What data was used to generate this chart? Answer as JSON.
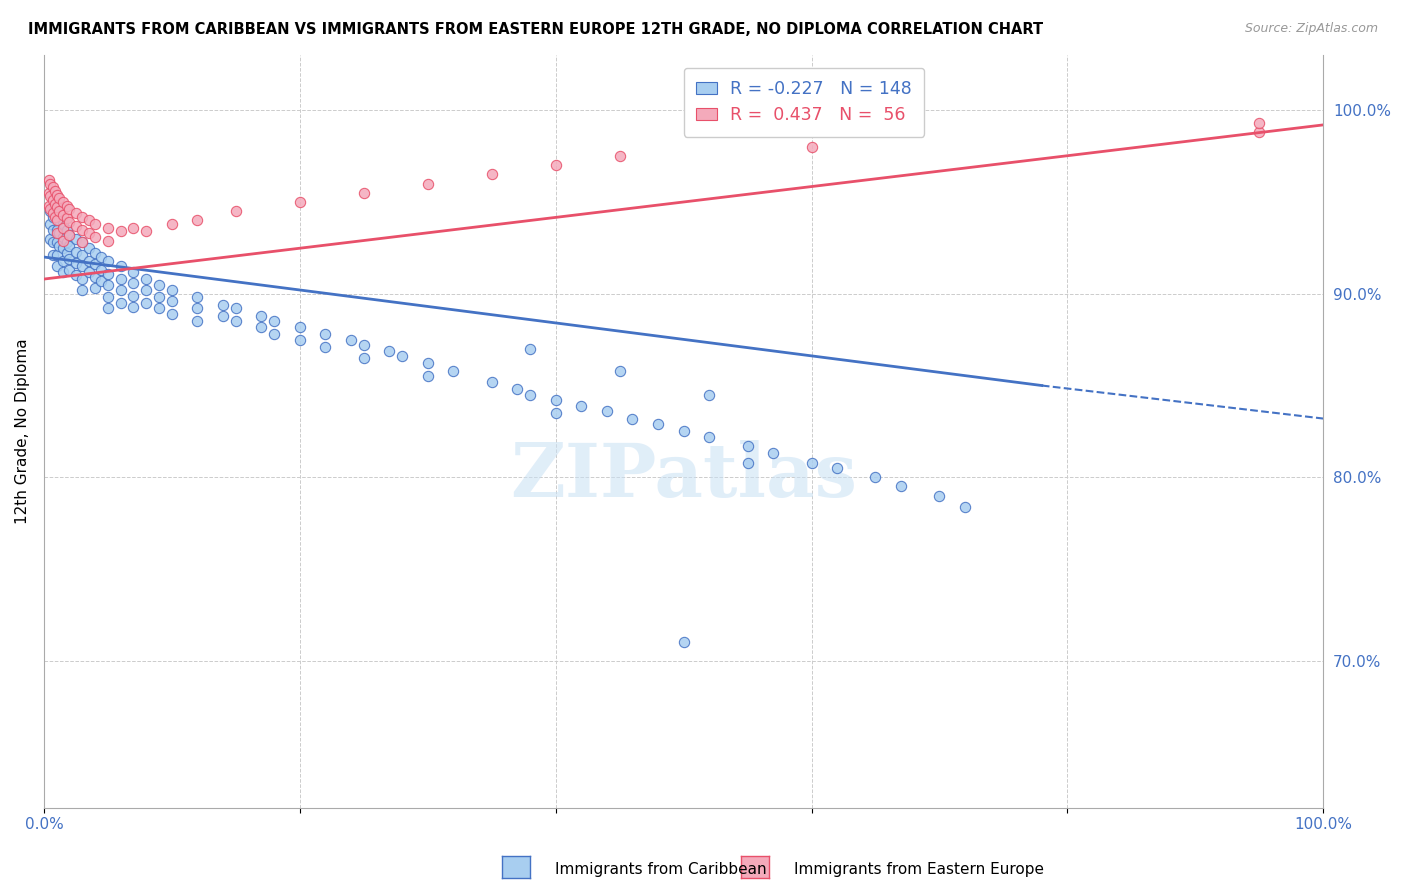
{
  "title": "IMMIGRANTS FROM CARIBBEAN VS IMMIGRANTS FROM EASTERN EUROPE 12TH GRADE, NO DIPLOMA CORRELATION CHART",
  "source": "Source: ZipAtlas.com",
  "ylabel": "12th Grade, No Diploma",
  "xlim": [
    0,
    1.0
  ],
  "ylim": [
    0.62,
    1.03
  ],
  "x_tick_pos": [
    0.0,
    0.2,
    0.4,
    0.6,
    0.8,
    1.0
  ],
  "x_tick_labels": [
    "0.0%",
    "",
    "",
    "",
    "",
    "100.0%"
  ],
  "y_tick_labels_right": [
    "100.0%",
    "90.0%",
    "80.0%",
    "70.0%"
  ],
  "y_tick_positions_right": [
    1.0,
    0.9,
    0.8,
    0.7
  ],
  "legend_blue_label": "Immigrants from Caribbean",
  "legend_pink_label": "Immigrants from Eastern Europe",
  "R_blue": -0.227,
  "N_blue": 148,
  "R_pink": 0.437,
  "N_pink": 56,
  "blue_color": "#A8CEF0",
  "pink_color": "#F4AABB",
  "blue_line_color": "#4472C4",
  "pink_line_color": "#E8506A",
  "watermark": "ZIPatlas",
  "blue_scatter_x": [
    0.005,
    0.005,
    0.005,
    0.007,
    0.007,
    0.007,
    0.007,
    0.01,
    0.01,
    0.01,
    0.01,
    0.01,
    0.01,
    0.012,
    0.012,
    0.012,
    0.015,
    0.015,
    0.015,
    0.015,
    0.015,
    0.018,
    0.018,
    0.018,
    0.02,
    0.02,
    0.02,
    0.02,
    0.025,
    0.025,
    0.025,
    0.025,
    0.03,
    0.03,
    0.03,
    0.03,
    0.03,
    0.035,
    0.035,
    0.035,
    0.04,
    0.04,
    0.04,
    0.04,
    0.045,
    0.045,
    0.045,
    0.05,
    0.05,
    0.05,
    0.05,
    0.05,
    0.06,
    0.06,
    0.06,
    0.06,
    0.07,
    0.07,
    0.07,
    0.07,
    0.08,
    0.08,
    0.08,
    0.09,
    0.09,
    0.09,
    0.1,
    0.1,
    0.1,
    0.12,
    0.12,
    0.12,
    0.14,
    0.14,
    0.15,
    0.15,
    0.17,
    0.17,
    0.18,
    0.18,
    0.2,
    0.2,
    0.22,
    0.22,
    0.24,
    0.25,
    0.25,
    0.27,
    0.28,
    0.3,
    0.3,
    0.32,
    0.35,
    0.37,
    0.38,
    0.4,
    0.4,
    0.42,
    0.44,
    0.46,
    0.48,
    0.5,
    0.52,
    0.55,
    0.55,
    0.57,
    0.6,
    0.62,
    0.65,
    0.67,
    0.7,
    0.72,
    0.38,
    0.45,
    0.52,
    0.5
  ],
  "blue_scatter_y": [
    0.945,
    0.938,
    0.93,
    0.942,
    0.935,
    0.928,
    0.921,
    0.948,
    0.942,
    0.935,
    0.928,
    0.921,
    0.915,
    0.94,
    0.933,
    0.926,
    0.938,
    0.931,
    0.925,
    0.918,
    0.912,
    0.935,
    0.928,
    0.922,
    0.932,
    0.926,
    0.919,
    0.913,
    0.93,
    0.923,
    0.917,
    0.91,
    0.928,
    0.921,
    0.915,
    0.908,
    0.902,
    0.925,
    0.918,
    0.912,
    0.922,
    0.916,
    0.909,
    0.903,
    0.92,
    0.913,
    0.907,
    0.918,
    0.911,
    0.905,
    0.898,
    0.892,
    0.915,
    0.908,
    0.902,
    0.895,
    0.912,
    0.906,
    0.899,
    0.893,
    0.908,
    0.902,
    0.895,
    0.905,
    0.898,
    0.892,
    0.902,
    0.896,
    0.889,
    0.898,
    0.892,
    0.885,
    0.894,
    0.888,
    0.892,
    0.885,
    0.888,
    0.882,
    0.885,
    0.878,
    0.882,
    0.875,
    0.878,
    0.871,
    0.875,
    0.872,
    0.865,
    0.869,
    0.866,
    0.862,
    0.855,
    0.858,
    0.852,
    0.848,
    0.845,
    0.842,
    0.835,
    0.839,
    0.836,
    0.832,
    0.829,
    0.825,
    0.822,
    0.817,
    0.808,
    0.813,
    0.808,
    0.805,
    0.8,
    0.795,
    0.79,
    0.784,
    0.87,
    0.858,
    0.845,
    0.71
  ],
  "pink_scatter_x": [
    0.004,
    0.004,
    0.004,
    0.005,
    0.005,
    0.005,
    0.007,
    0.007,
    0.007,
    0.009,
    0.009,
    0.009,
    0.01,
    0.01,
    0.01,
    0.01,
    0.012,
    0.012,
    0.015,
    0.015,
    0.015,
    0.015,
    0.018,
    0.018,
    0.02,
    0.02,
    0.02,
    0.025,
    0.025,
    0.03,
    0.03,
    0.03,
    0.035,
    0.035,
    0.04,
    0.04,
    0.05,
    0.05,
    0.06,
    0.07,
    0.08,
    0.1,
    0.12,
    0.15,
    0.2,
    0.25,
    0.3,
    0.35,
    0.4,
    0.45,
    0.6,
    0.95,
    0.95
  ],
  "pink_scatter_y": [
    0.962,
    0.955,
    0.948,
    0.96,
    0.953,
    0.946,
    0.958,
    0.951,
    0.944,
    0.956,
    0.949,
    0.942,
    0.954,
    0.947,
    0.94,
    0.933,
    0.952,
    0.945,
    0.95,
    0.943,
    0.936,
    0.929,
    0.948,
    0.941,
    0.946,
    0.939,
    0.932,
    0.944,
    0.937,
    0.942,
    0.935,
    0.928,
    0.94,
    0.933,
    0.938,
    0.931,
    0.936,
    0.929,
    0.934,
    0.936,
    0.934,
    0.938,
    0.94,
    0.945,
    0.95,
    0.955,
    0.96,
    0.965,
    0.97,
    0.975,
    0.98,
    0.988,
    0.993
  ],
  "blue_trend_x0": 0.0,
  "blue_trend_x1": 0.78,
  "blue_trend_x1_dash": 1.0,
  "blue_trend_y0": 0.92,
  "blue_trend_y1": 0.85,
  "blue_trend_y1_dash": 0.832,
  "pink_trend_x0": 0.0,
  "pink_trend_x1": 1.0,
  "pink_trend_y0": 0.908,
  "pink_trend_y1": 0.992
}
